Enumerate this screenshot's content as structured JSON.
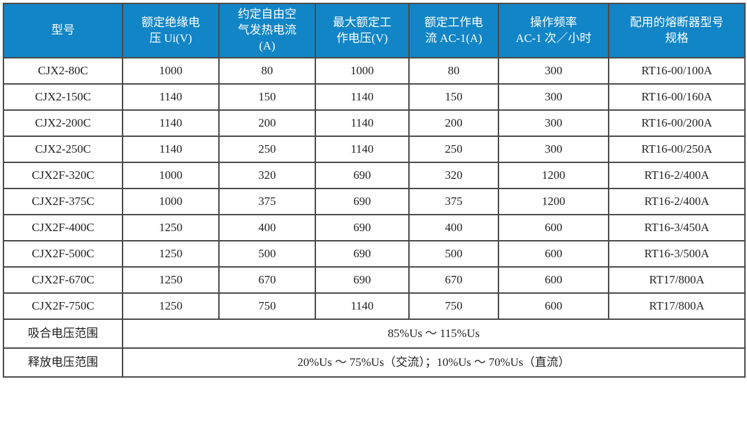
{
  "table": {
    "colors": {
      "header_bg": "#1285c6",
      "header_text": "#ffffff",
      "border": "#4a4a4a",
      "body_text": "#1f1f1f"
    },
    "headers": [
      "型号",
      "额定绝缘电\n压 Ui(V)",
      "约定自由空\n气发热电流\n(A)",
      "最大额定工\n作电压(V)",
      "额定工作电\n流 AC-1(A)",
      "操作频率\nAC-1 次／小时",
      "配用的熔断器型号\n规格"
    ],
    "rows": [
      [
        "CJX2-80C",
        "1000",
        "80",
        "1000",
        "80",
        "300",
        "RT16-00/100A"
      ],
      [
        "CJX2-150C",
        "1140",
        "150",
        "1140",
        "150",
        "300",
        "RT16-00/160A"
      ],
      [
        "CJX2-200C",
        "1140",
        "200",
        "1140",
        "200",
        "300",
        "RT16-00/200A"
      ],
      [
        "CJX2-250C",
        "1140",
        "250",
        "1140",
        "250",
        "300",
        "RT16-00/250A"
      ],
      [
        "CJX2F-320C",
        "1000",
        "320",
        "690",
        "320",
        "1200",
        "RT16-2/400A"
      ],
      [
        "CJX2F-375C",
        "1000",
        "375",
        "690",
        "375",
        "1200",
        "RT16-2/400A"
      ],
      [
        "CJX2F-400C",
        "1250",
        "400",
        "690",
        "400",
        "600",
        "RT16-3/450A"
      ],
      [
        "CJX2F-500C",
        "1250",
        "500",
        "690",
        "500",
        "600",
        "RT16-3/500A"
      ],
      [
        "CJX2F-670C",
        "1250",
        "670",
        "690",
        "670",
        "600",
        "RT17/800A"
      ],
      [
        "CJX2F-750C",
        "1250",
        "750",
        "1140",
        "750",
        "600",
        "RT17/800A"
      ]
    ],
    "footer_rows": [
      {
        "label": "吸合电压范围",
        "value": "85%Us ～ 115%Us"
      },
      {
        "label": "释放电压范围",
        "value": "20%Us ～ 75%Us（交流）；10%Us ～ 70%Us（直流）"
      }
    ]
  }
}
